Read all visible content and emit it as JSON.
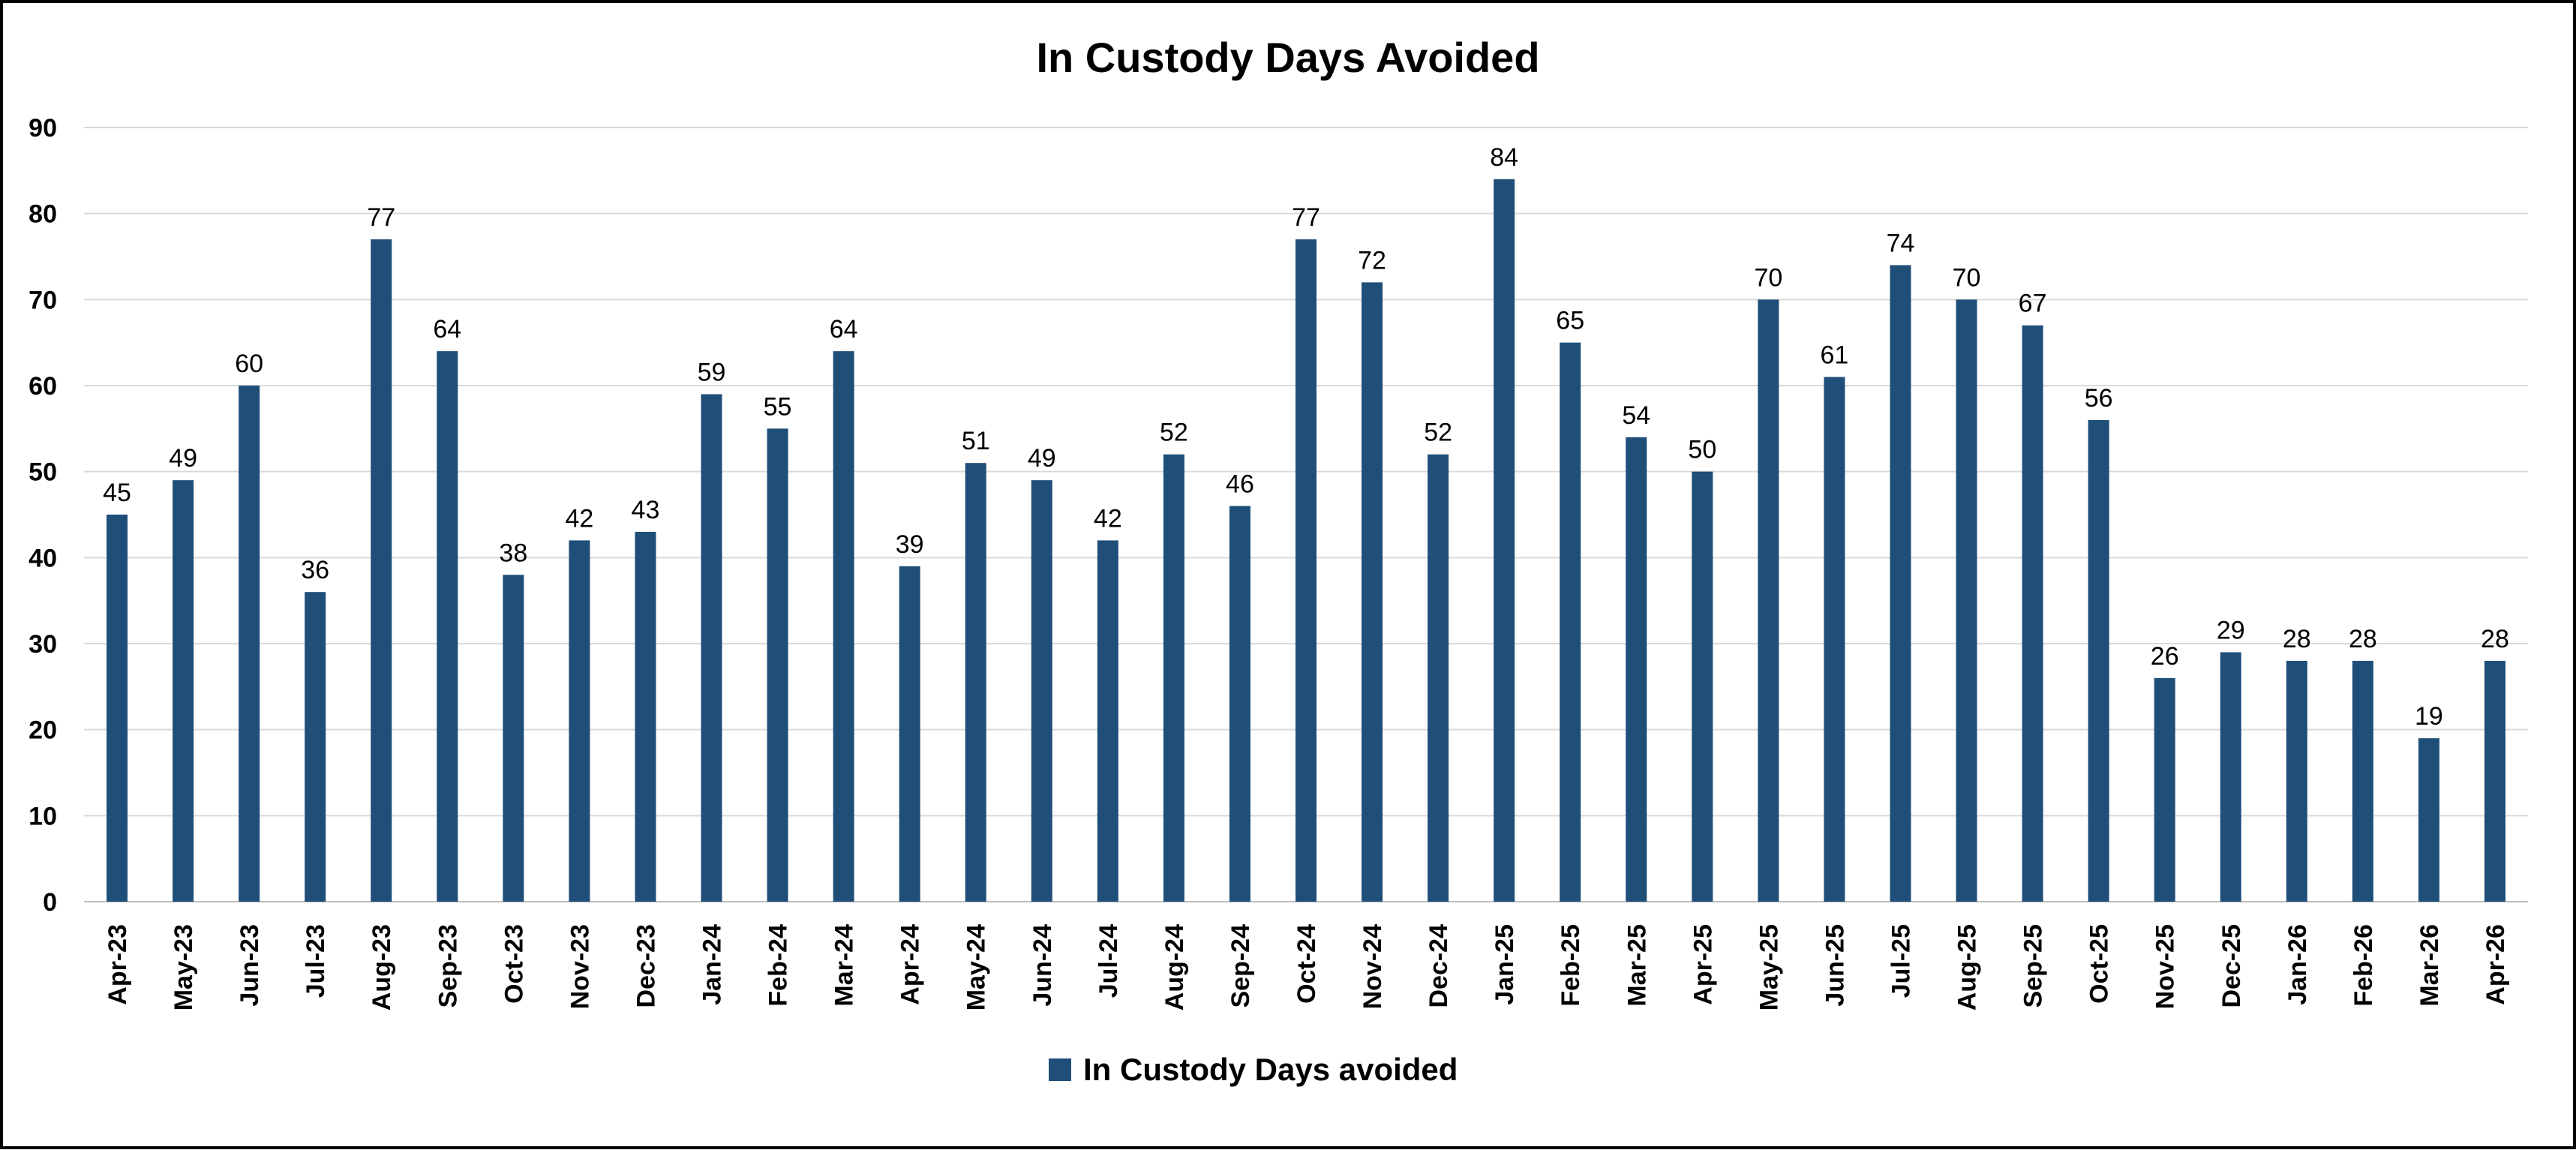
{
  "chart_data": {
    "type": "bar",
    "title": "In Custody Days Avoided",
    "xlabel": "",
    "ylabel": "",
    "ylim": [
      0,
      90
    ],
    "yticks": [
      0,
      10,
      20,
      30,
      40,
      50,
      60,
      70,
      80,
      90
    ],
    "grid": true,
    "legend_position": "bottom",
    "bar_color": "#1f4e79",
    "categories": [
      "Apr-23",
      "May-23",
      "Jun-23",
      "Jul-23",
      "Aug-23",
      "Sep-23",
      "Oct-23",
      "Nov-23",
      "Dec-23",
      "Jan-24",
      "Feb-24",
      "Mar-24",
      "Apr-24",
      "May-24",
      "Jun-24",
      "Jul-24",
      "Aug-24",
      "Sep-24",
      "Oct-24",
      "Nov-24",
      "Dec-24",
      "Jan-25",
      "Feb-25",
      "Mar-25",
      "Apr-25",
      "May-25",
      "Jun-25",
      "Jul-25",
      "Aug-25",
      "Sep-25",
      "Oct-25",
      "Nov-25",
      "Dec-25",
      "Jan-26",
      "Feb-26",
      "Mar-26",
      "Apr-26"
    ],
    "series": [
      {
        "name": "In Custody Days avoided",
        "values": [
          45,
          49,
          60,
          36,
          77,
          64,
          38,
          42,
          43,
          59,
          55,
          64,
          39,
          51,
          49,
          42,
          52,
          46,
          77,
          72,
          52,
          84,
          65,
          54,
          50,
          70,
          61,
          74,
          70,
          67,
          56,
          26,
          29,
          28,
          28,
          19,
          28
        ]
      }
    ]
  }
}
